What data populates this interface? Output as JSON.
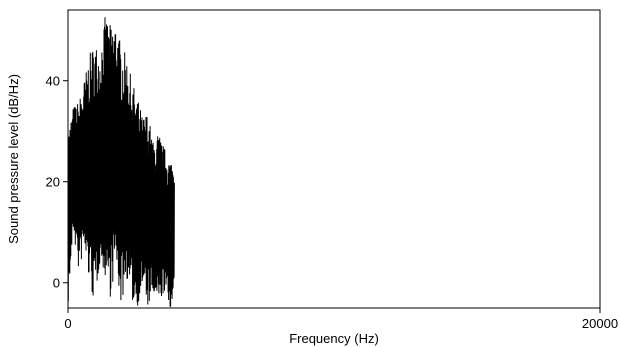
{
  "chart_data": {
    "type": "line",
    "title": "",
    "xlabel": "Frequency (Hz)",
    "ylabel": "Sound pressure level (dB/Hz)",
    "xlim": [
      0,
      20000
    ],
    "ylim": [
      -5,
      54
    ],
    "x_ticks": [
      0,
      20000
    ],
    "y_ticks": [
      0,
      20,
      40
    ],
    "grid": false,
    "series": [
      {
        "color": "#000000",
        "x": [
          0,
          200,
          400,
          600,
          800,
          1000,
          1200,
          1400,
          1600,
          1800,
          2000,
          2200,
          2400,
          2600,
          2800,
          3000,
          3200,
          3400,
          3600,
          3800,
          4000
        ],
        "y_upper": [
          30,
          35,
          36,
          40,
          45,
          48,
          46,
          53,
          51,
          52,
          47,
          45,
          40,
          37,
          33,
          34,
          28,
          30,
          27,
          25,
          24
        ],
        "y_lower": [
          -5,
          10,
          2,
          6,
          0,
          -5,
          4,
          1,
          -3,
          3,
          -5,
          1,
          -4,
          -5,
          -1,
          -5,
          -3,
          -5,
          -2,
          -5,
          -5
        ]
      }
    ]
  }
}
